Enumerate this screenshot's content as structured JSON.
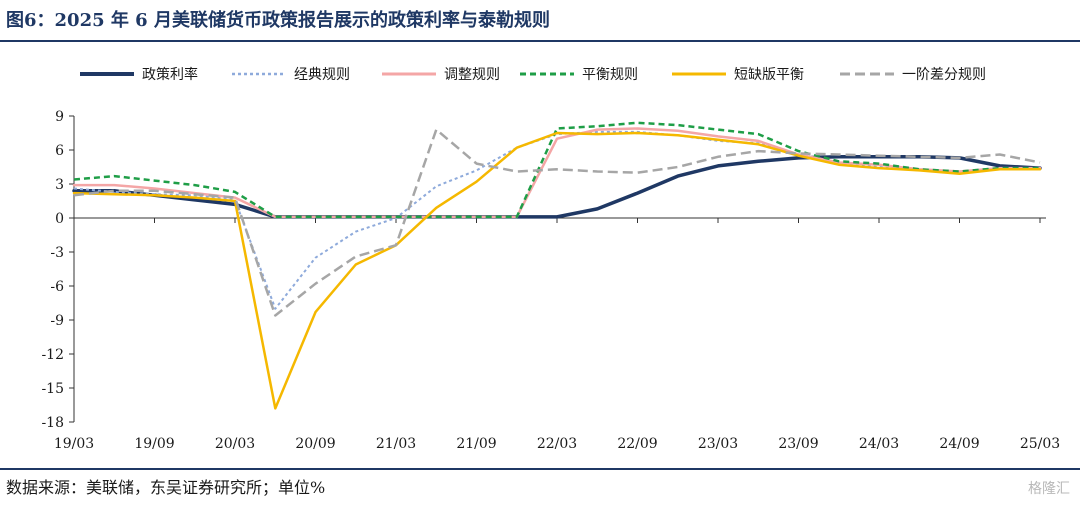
{
  "header": {
    "title": "图6：2025 年 6 月美联储货币政策报告展示的政策利率与泰勒规则"
  },
  "footer": {
    "source": "数据来源：美联储，东吴证券研究所；单位%",
    "watermark": "格隆汇"
  },
  "chart_data": {
    "type": "line",
    "ylim": [
      -18,
      9
    ],
    "yticks": [
      9,
      6,
      3,
      0,
      -3,
      -6,
      -9,
      -12,
      -15,
      -18
    ],
    "x": [
      "19/03",
      "19/06",
      "19/09",
      "19/12",
      "20/03",
      "20/06",
      "20/09",
      "20/12",
      "21/03",
      "21/06",
      "21/09",
      "21/12",
      "22/03",
      "22/06",
      "22/09",
      "22/12",
      "23/03",
      "23/06",
      "23/09",
      "23/12",
      "24/03",
      "24/06",
      "24/09",
      "24/12",
      "25/03"
    ],
    "xticks": [
      "19/03",
      "19/09",
      "20/03",
      "20/09",
      "21/03",
      "21/09",
      "22/03",
      "22/09",
      "23/03",
      "23/09",
      "24/03",
      "24/09",
      "25/03"
    ],
    "legend_position": "top",
    "series": [
      {
        "name": "政策利率",
        "color": "#1f3864",
        "dash": "solid",
        "width": 3.5,
        "values": [
          2.4,
          2.4,
          2.0,
          1.6,
          1.2,
          0.1,
          0.1,
          0.1,
          0.1,
          0.1,
          0.1,
          0.1,
          0.1,
          0.8,
          2.2,
          3.7,
          4.6,
          5.0,
          5.3,
          5.4,
          5.4,
          5.4,
          5.3,
          4.6,
          4.4
        ]
      },
      {
        "name": "经典规则",
        "color": "#8eaadb",
        "dash": "3,3",
        "width": 2,
        "values": [
          2.6,
          2.3,
          2.1,
          2.0,
          1.6,
          -8.0,
          -3.5,
          -1.2,
          0.0,
          2.8,
          4.2,
          6.2,
          7.4,
          7.6,
          7.6,
          7.3,
          6.8,
          6.6,
          5.6,
          4.9,
          4.5,
          4.2,
          4.1,
          4.4,
          4.3
        ]
      },
      {
        "name": "调整规则",
        "color": "#f4a6a6",
        "dash": "solid",
        "width": 2.5,
        "values": [
          2.9,
          2.9,
          2.6,
          2.2,
          1.8,
          0.1,
          0.1,
          0.1,
          0.1,
          0.1,
          0.1,
          0.1,
          7.0,
          7.8,
          7.9,
          7.7,
          7.2,
          6.8,
          5.6,
          4.9,
          4.7,
          4.3,
          4.1,
          4.4,
          4.4
        ]
      },
      {
        "name": "平衡规则",
        "color": "#1f9e47",
        "dash": "6,4",
        "width": 2.5,
        "values": [
          3.4,
          3.7,
          3.3,
          2.9,
          2.3,
          0.1,
          0.1,
          0.1,
          0.1,
          0.1,
          0.1,
          0.1,
          7.9,
          8.1,
          8.4,
          8.2,
          7.8,
          7.4,
          5.9,
          5.0,
          4.8,
          4.3,
          4.1,
          4.4,
          4.4
        ]
      },
      {
        "name": "短缺版平衡",
        "color": "#f5b800",
        "dash": "solid",
        "width": 2.5,
        "values": [
          2.2,
          2.1,
          2.0,
          1.8,
          1.5,
          -16.8,
          -8.3,
          -4.1,
          -2.4,
          0.9,
          3.2,
          6.2,
          7.5,
          7.4,
          7.5,
          7.3,
          6.9,
          6.5,
          5.5,
          4.7,
          4.4,
          4.2,
          3.9,
          4.3,
          4.3
        ]
      },
      {
        "name": "一阶差分规则",
        "color": "#a6a6a6",
        "dash": "10,5",
        "width": 2.5,
        "values": [
          2.0,
          2.4,
          2.4,
          2.1,
          1.8,
          -8.6,
          -5.8,
          -3.4,
          -2.4,
          7.8,
          4.8,
          4.1,
          4.3,
          4.1,
          4.0,
          4.5,
          5.4,
          5.9,
          5.7,
          5.6,
          5.5,
          5.4,
          5.3,
          5.6,
          4.9
        ]
      }
    ]
  }
}
